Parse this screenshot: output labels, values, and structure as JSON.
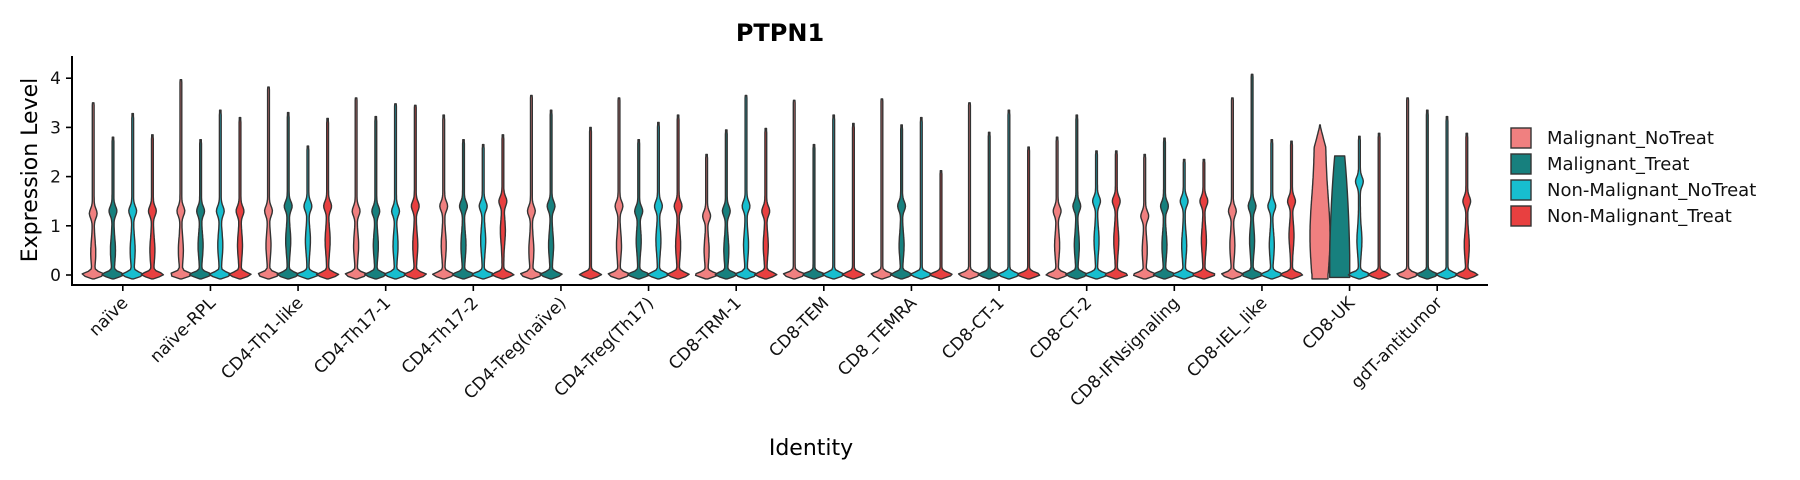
{
  "chart_data": {
    "type": "violin",
    "title": "PTPN1",
    "xlabel": "Identity",
    "ylabel": "Expression Level",
    "ylim": [
      -0.15,
      4.3
    ],
    "yticks": [
      0,
      1,
      2,
      3,
      4
    ],
    "categories": [
      "naïve",
      "naïve-RPL",
      "CD4-Th1-like",
      "CD4-Th17-1",
      "CD4-Th17-2",
      "CD4-Treg(naïve)",
      "CD4-Treg(Th17)",
      "CD8-TRM-1",
      "CD8-TEM",
      "CD8_TEMRA",
      "CD8-CT-1",
      "CD8-CT-2",
      "CD8-IFNsignaling",
      "CD8-IEL_like",
      "CD8-UK",
      "gdT-antitumor"
    ],
    "legend": {
      "position": "right"
    },
    "series": [
      {
        "name": "Malignant_NoTreat",
        "color": "#F08080",
        "max": [
          3.5,
          3.97,
          3.82,
          3.6,
          3.25,
          3.65,
          3.6,
          2.45,
          3.55,
          3.58,
          3.5,
          2.8,
          2.45,
          3.6,
          3.05,
          3.6
        ],
        "mode": [
          1.25,
          1.3,
          1.3,
          1.3,
          1.4,
          1.3,
          1.4,
          1.2,
          null,
          null,
          null,
          1.3,
          1.2,
          1.3,
          0.2,
          null
        ],
        "mid": [
          0.45,
          0.5,
          0.6,
          0.6,
          0.6,
          0.5,
          0.6,
          0.5,
          null,
          null,
          null,
          0.6,
          0.5,
          0.6,
          0.9,
          null
        ]
      },
      {
        "name": "Malignant_Treat",
        "color": "#17807E",
        "max": [
          2.8,
          2.75,
          3.3,
          3.22,
          2.75,
          3.35,
          2.75,
          2.95,
          2.65,
          3.05,
          2.9,
          3.25,
          2.78,
          4.08,
          2.42,
          3.35
        ],
        "mode": [
          1.3,
          1.3,
          1.4,
          1.3,
          1.4,
          1.4,
          1.3,
          1.3,
          null,
          1.4,
          null,
          1.4,
          1.4,
          1.4,
          0.8,
          null
        ],
        "mid": [
          0.5,
          0.6,
          0.7,
          0.6,
          0.6,
          0.6,
          0.7,
          0.5,
          null,
          0.6,
          null,
          0.6,
          0.6,
          0.7,
          1.0,
          null
        ]
      },
      {
        "name": "Non-Malignant_NoTreat",
        "color": "#17BECF",
        "max": [
          3.28,
          3.35,
          2.62,
          3.48,
          2.65,
          null,
          3.1,
          3.65,
          3.25,
          3.2,
          3.35,
          2.52,
          2.35,
          2.75,
          2.82,
          3.22
        ],
        "mode": [
          1.3,
          1.3,
          1.4,
          1.3,
          1.4,
          null,
          1.4,
          1.4,
          null,
          null,
          null,
          1.5,
          1.5,
          1.4,
          1.9,
          null
        ],
        "mid": [
          0.5,
          0.6,
          0.7,
          0.6,
          0.7,
          null,
          0.7,
          0.6,
          null,
          null,
          null,
          0.7,
          0.6,
          0.6,
          0.7,
          null
        ]
      },
      {
        "name": "Non-Malignant_Treat",
        "color": "#E84040",
        "max": [
          2.85,
          3.2,
          3.18,
          3.45,
          2.85,
          3.0,
          3.25,
          2.98,
          3.08,
          2.12,
          2.6,
          2.52,
          2.35,
          2.72,
          2.88,
          2.88
        ],
        "mode": [
          1.3,
          1.3,
          1.4,
          1.4,
          1.5,
          null,
          1.4,
          1.3,
          null,
          null,
          null,
          1.5,
          1.5,
          1.5,
          null,
          1.5
        ],
        "mid": [
          0.5,
          0.6,
          0.7,
          0.6,
          0.9,
          null,
          0.6,
          0.6,
          null,
          null,
          null,
          0.7,
          0.7,
          0.8,
          null,
          0.6
        ]
      }
    ]
  }
}
